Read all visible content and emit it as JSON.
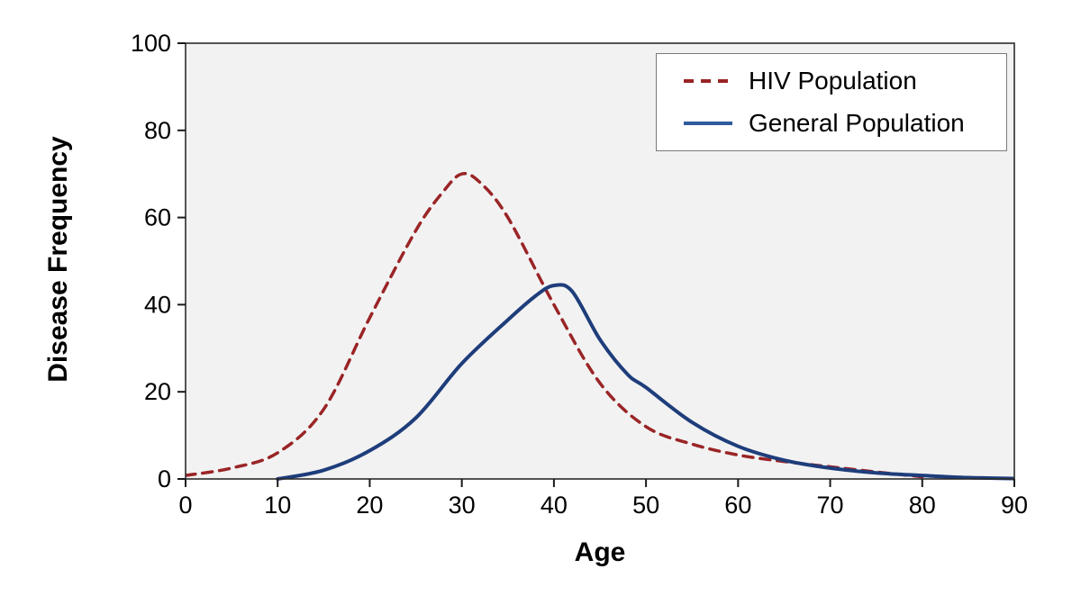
{
  "figure": {
    "background": "#ffffff",
    "plot_background": "#f2f2f2",
    "frame_color": "#2b2b2b",
    "tick_color": "#1a1a1a",
    "text_color": "#000000"
  },
  "chart_data": {
    "type": "line",
    "title": "",
    "xlabel": "Age",
    "ylabel": "Disease Frequency",
    "xlim": [
      0,
      90
    ],
    "ylim": [
      0,
      100
    ],
    "x_ticks": [
      0,
      10,
      20,
      30,
      40,
      50,
      60,
      70,
      80,
      90
    ],
    "y_ticks": [
      0,
      20,
      40,
      60,
      80,
      100
    ],
    "grid": false,
    "legend_position": "top-right",
    "series": [
      {
        "name": "HIV Population",
        "color": "#9a2426",
        "line_style": "dashed",
        "line_width": 3.5,
        "points": [
          [
            0,
            0.8
          ],
          [
            5,
            2.5
          ],
          [
            10,
            6
          ],
          [
            15,
            16
          ],
          [
            20,
            37
          ],
          [
            25,
            57
          ],
          [
            28,
            66
          ],
          [
            30,
            70
          ],
          [
            32,
            68
          ],
          [
            35,
            60
          ],
          [
            40,
            40
          ],
          [
            45,
            22
          ],
          [
            50,
            12
          ],
          [
            55,
            8
          ],
          [
            60,
            5.5
          ],
          [
            65,
            4
          ],
          [
            70,
            2.8
          ],
          [
            75,
            1.6
          ],
          [
            80,
            0.5
          ]
        ]
      },
      {
        "name": "General Population",
        "color": "#1e3d7b",
        "legend_swatch_color": "#2e5c9e",
        "line_style": "solid",
        "line_width": 4,
        "points": [
          [
            10,
            0
          ],
          [
            15,
            2
          ],
          [
            20,
            6.5
          ],
          [
            25,
            14
          ],
          [
            30,
            26.5
          ],
          [
            35,
            36.5
          ],
          [
            38,
            42
          ],
          [
            40,
            44.4
          ],
          [
            42,
            43
          ],
          [
            45,
            32
          ],
          [
            48,
            24
          ],
          [
            50,
            21
          ],
          [
            55,
            13
          ],
          [
            60,
            7.5
          ],
          [
            65,
            4.3
          ],
          [
            70,
            2.5
          ],
          [
            75,
            1.4
          ],
          [
            80,
            0.8
          ],
          [
            85,
            0.3
          ],
          [
            90,
            0.1
          ]
        ]
      }
    ]
  }
}
